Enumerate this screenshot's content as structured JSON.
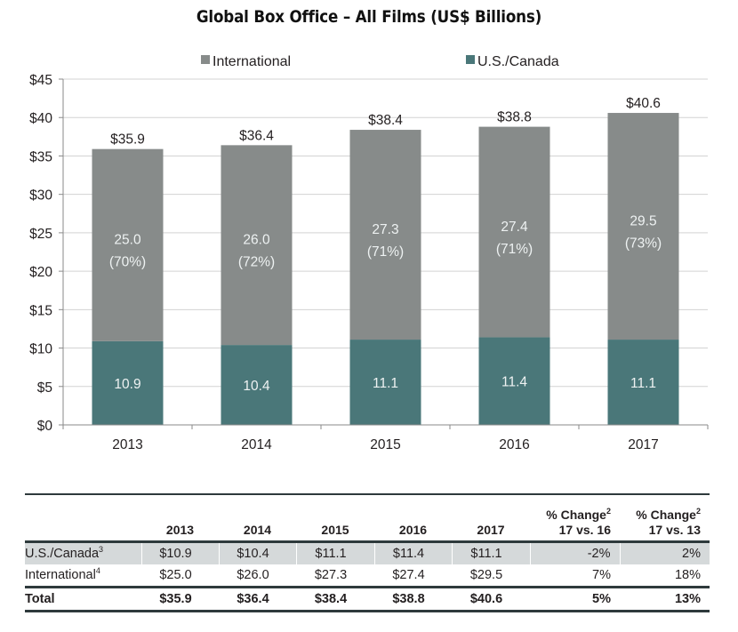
{
  "chart_data": {
    "type": "bar",
    "stacked": true,
    "title": "Global Box Office – All Films (US$ Billions)",
    "xlabel": "",
    "ylabel": "",
    "categories": [
      "2013",
      "2014",
      "2015",
      "2016",
      "2017"
    ],
    "series": [
      {
        "name": "U.S./Canada",
        "color": "#4a7779",
        "values": [
          10.9,
          10.4,
          11.1,
          11.4,
          11.1
        ],
        "labels": [
          "10.9",
          "10.4",
          "11.1",
          "11.4",
          "11.1"
        ]
      },
      {
        "name": "International",
        "color": "#878b8a",
        "values": [
          25.0,
          26.0,
          27.3,
          27.4,
          29.5
        ],
        "labels": [
          "25.0",
          "26.0",
          "27.3",
          "27.4",
          "29.5"
        ],
        "share_labels": [
          "(70%)",
          "(72%)",
          "(71%)",
          "(71%)",
          "(73%)"
        ]
      }
    ],
    "totals": [
      35.9,
      36.4,
      38.4,
      38.8,
      40.6
    ],
    "total_labels": [
      "$35.9",
      "$36.4",
      "$38.4",
      "$38.8",
      "$40.6"
    ],
    "legend": {
      "placement": "top",
      "entries": [
        "International",
        "U.S./Canada"
      ]
    },
    "ylim": [
      0,
      45
    ],
    "yticks": [
      0,
      5,
      10,
      15,
      20,
      25,
      30,
      35,
      40,
      45
    ],
    "ytick_labels": [
      "$0",
      "$5",
      "$10",
      "$15",
      "$20",
      "$25",
      "$30",
      "$35",
      "$40",
      "$45"
    ],
    "grid": true
  },
  "table": {
    "headers": {
      "years": [
        "2013",
        "2014",
        "2015",
        "2016",
        "2017"
      ],
      "change1_line1": "% Change",
      "change1_sup": "2",
      "change1_line2": "17 vs. 16",
      "change2_line1": "% Change",
      "change2_sup": "2",
      "change2_line2": "17 vs. 13"
    },
    "rows": [
      {
        "label": "U.S./Canada",
        "sup": "3",
        "values": [
          "$10.9",
          "$10.4",
          "$11.1",
          "$11.4",
          "$11.1"
        ],
        "change_17_16": "-2%",
        "change_17_13": "2%"
      },
      {
        "label": "International",
        "sup": "4",
        "values": [
          "$25.0",
          "$26.0",
          "$27.3",
          "$27.4",
          "$29.5"
        ],
        "change_17_16": "7%",
        "change_17_13": "18%"
      },
      {
        "label": "Total",
        "sup": "",
        "values": [
          "$35.9",
          "$36.4",
          "$38.4",
          "$38.8",
          "$40.6"
        ],
        "change_17_16": "5%",
        "change_17_13": "13%"
      }
    ]
  }
}
